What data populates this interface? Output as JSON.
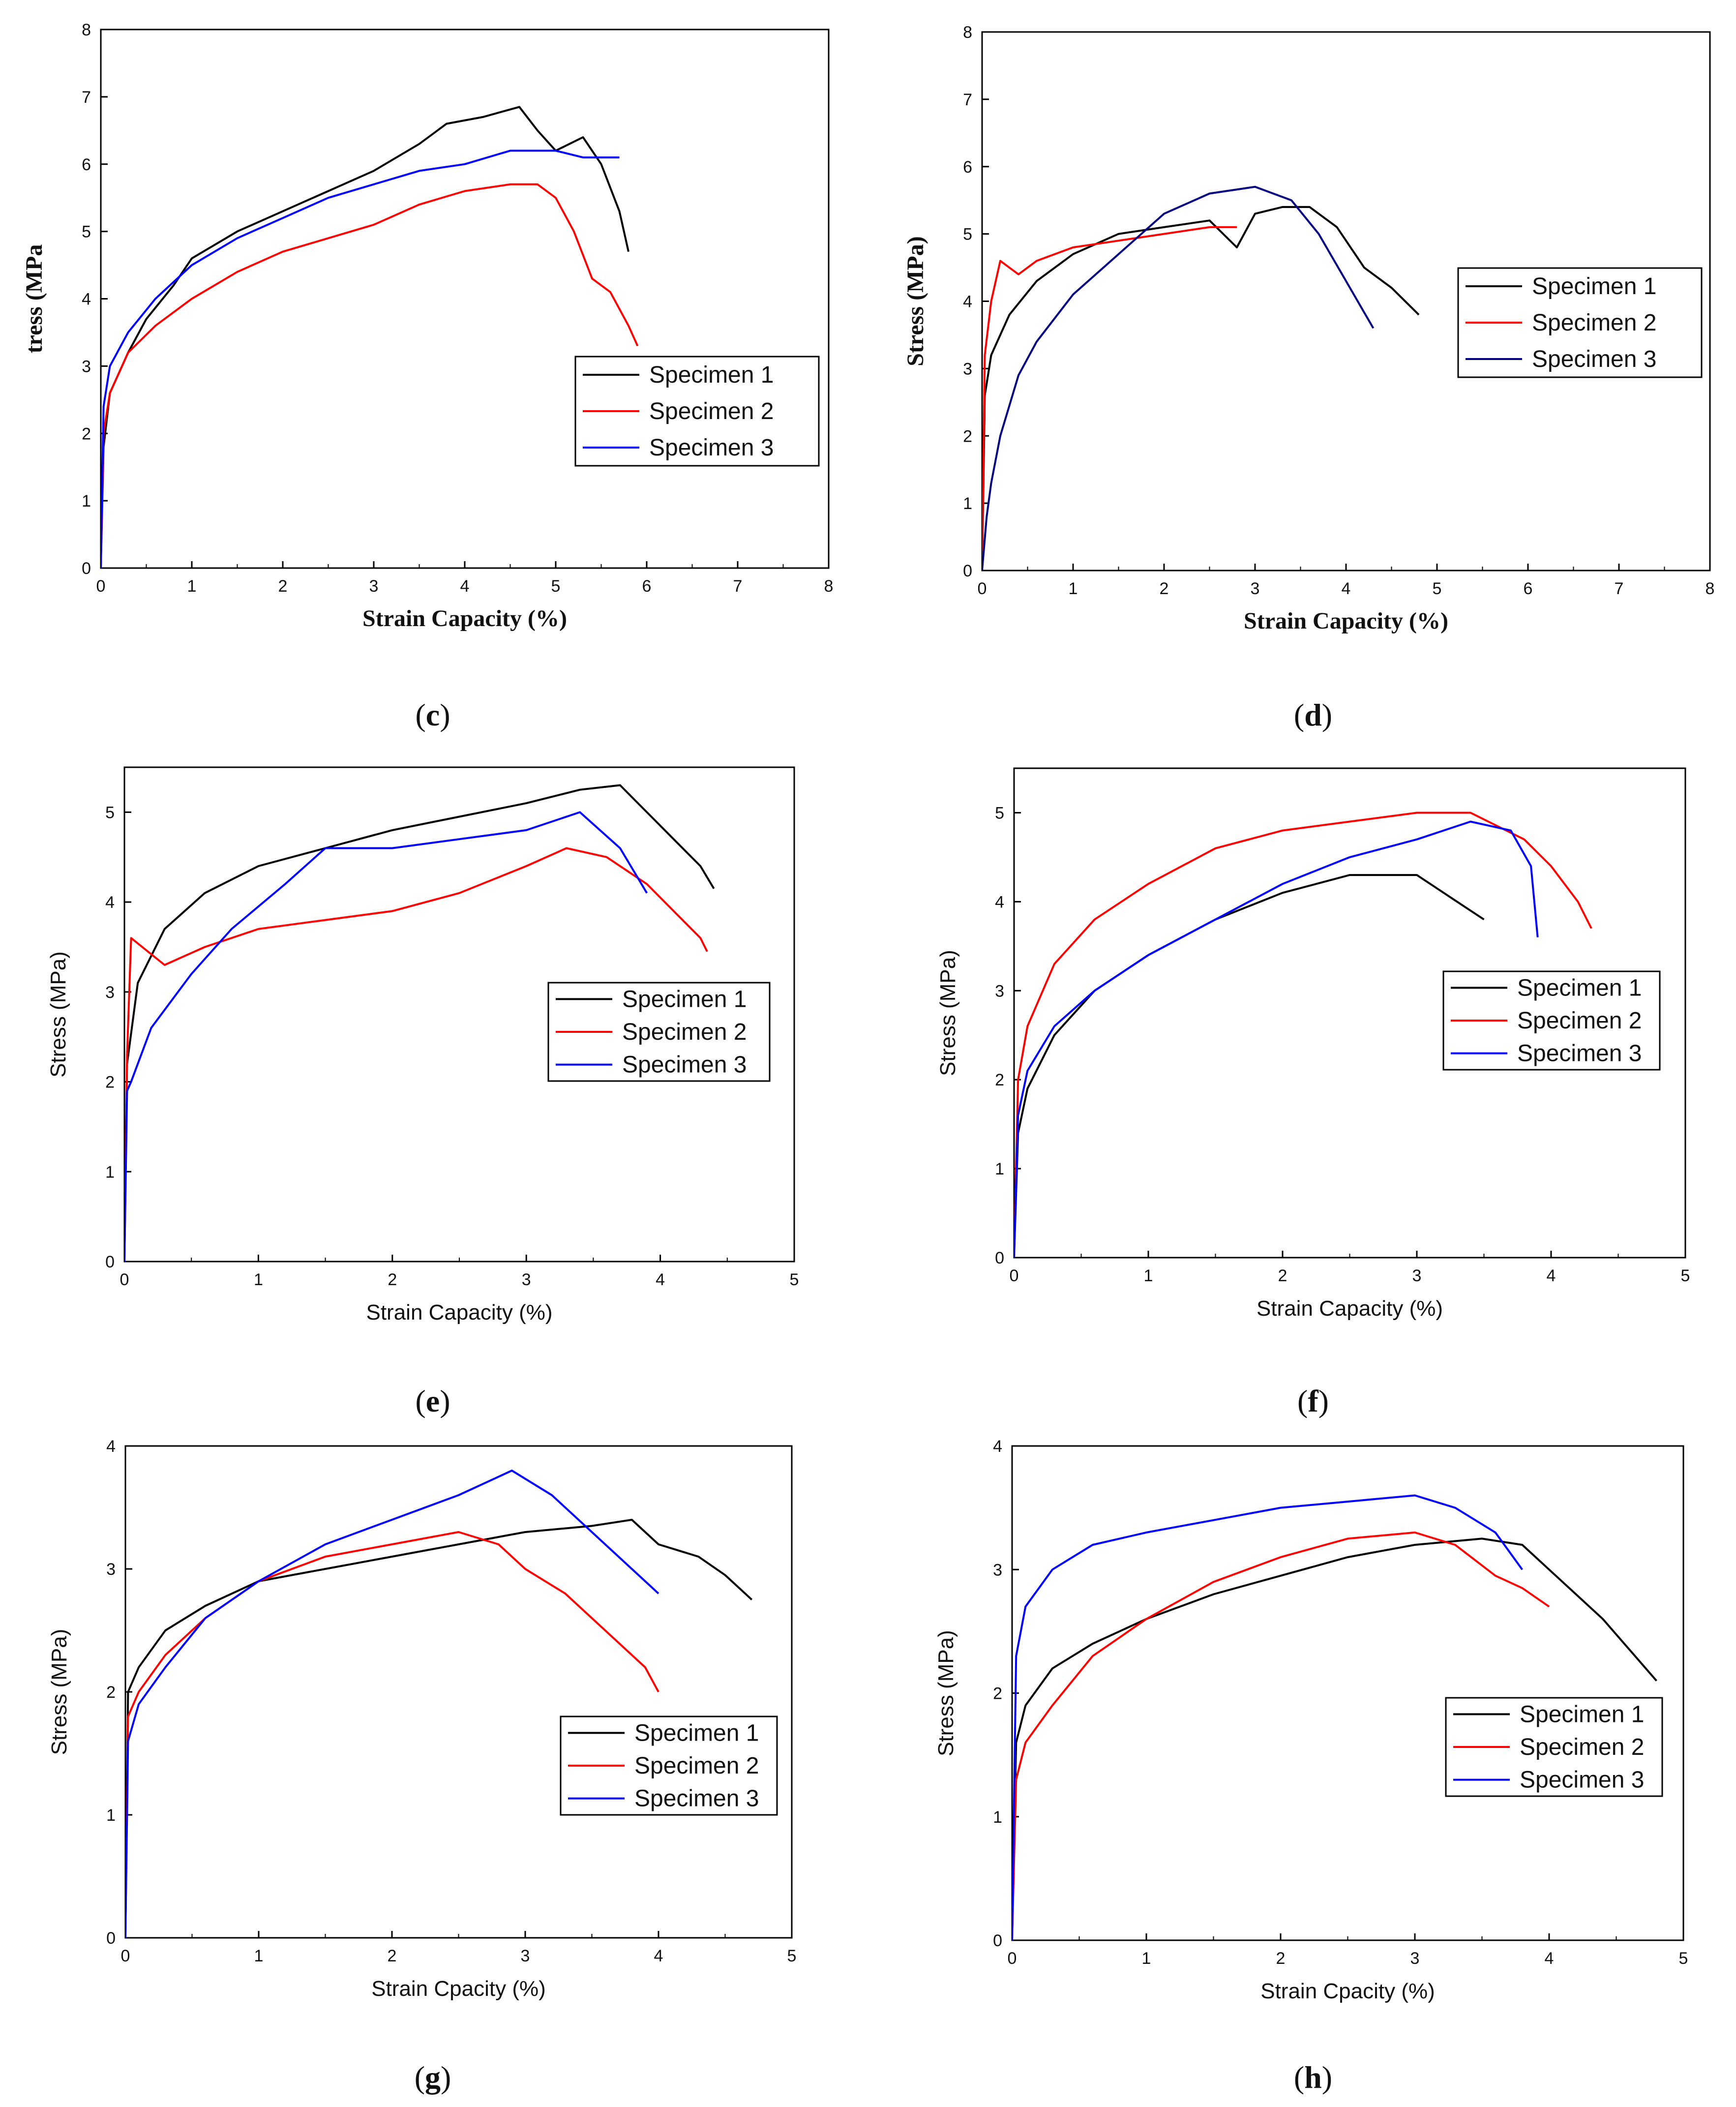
{
  "chart_data": [
    {
      "id": "c",
      "type": "line",
      "caption": "c",
      "xlabel": "Strain Capacity (%)",
      "ylabel": "tress (MPa",
      "xlim": [
        0,
        8
      ],
      "ylim": [
        0,
        8
      ],
      "xticks": [
        "0",
        "1",
        "2",
        "3",
        "4",
        "5",
        "6",
        "7",
        "8"
      ],
      "yticks": [
        "0",
        "1",
        "2",
        "3",
        "4",
        "5",
        "6",
        "7",
        "8"
      ],
      "font": "serif",
      "legend_position": "lower-right",
      "series": [
        {
          "name": "Specimen 1",
          "color": "#000000",
          "x": [
            0,
            0.03,
            0.1,
            0.3,
            0.5,
            0.8,
            1.0,
            1.5,
            2.0,
            2.5,
            3.0,
            3.5,
            3.8,
            4.2,
            4.6,
            4.8,
            5.0,
            5.3,
            5.5,
            5.7,
            5.8
          ],
          "y": [
            0,
            1.8,
            2.6,
            3.2,
            3.7,
            4.2,
            4.6,
            5.0,
            5.3,
            5.6,
            5.9,
            6.3,
            6.6,
            6.7,
            6.85,
            6.5,
            6.2,
            6.4,
            6.0,
            5.3,
            4.7
          ]
        },
        {
          "name": "Specimen 2",
          "color": "#ff0000",
          "x": [
            0,
            0.03,
            0.1,
            0.3,
            0.6,
            1.0,
            1.5,
            2.0,
            2.5,
            3.0,
            3.5,
            4.0,
            4.5,
            4.8,
            5.0,
            5.2,
            5.4,
            5.6,
            5.8,
            5.9
          ],
          "y": [
            0,
            2.0,
            2.6,
            3.2,
            3.6,
            4.0,
            4.4,
            4.7,
            4.9,
            5.1,
            5.4,
            5.6,
            5.7,
            5.7,
            5.5,
            5.0,
            4.3,
            4.1,
            3.6,
            3.3
          ]
        },
        {
          "name": "Specimen 3",
          "color": "#0000ff",
          "x": [
            0,
            0.03,
            0.1,
            0.3,
            0.6,
            1.0,
            1.5,
            2.0,
            2.5,
            3.0,
            3.5,
            4.0,
            4.5,
            5.0,
            5.3,
            5.5,
            5.7
          ],
          "y": [
            0,
            2.4,
            3.0,
            3.5,
            4.0,
            4.5,
            4.9,
            5.2,
            5.5,
            5.7,
            5.9,
            6.0,
            6.2,
            6.2,
            6.1,
            6.1,
            6.1
          ]
        }
      ]
    },
    {
      "id": "d",
      "type": "line",
      "caption": "d",
      "xlabel": "Strain Capacity (%)",
      "ylabel": "Stress (MPa)",
      "xlim": [
        0,
        8
      ],
      "ylim": [
        0,
        8
      ],
      "xticks": [
        "0",
        "1",
        "2",
        "3",
        "4",
        "5",
        "6",
        "7",
        "8"
      ],
      "yticks": [
        "0",
        "1",
        "2",
        "3",
        "4",
        "5",
        "6",
        "7",
        "8"
      ],
      "font": "serif",
      "legend_position": "right",
      "series": [
        {
          "name": "Specimen 1",
          "color": "#000000",
          "x": [
            0,
            0.03,
            0.1,
            0.3,
            0.6,
            1.0,
            1.5,
            2.0,
            2.5,
            2.8,
            3.0,
            3.3,
            3.6,
            3.9,
            4.2,
            4.5,
            4.8
          ],
          "y": [
            0,
            2.6,
            3.2,
            3.8,
            4.3,
            4.7,
            5.0,
            5.1,
            5.2,
            4.8,
            5.3,
            5.4,
            5.4,
            5.1,
            4.5,
            4.2,
            3.8
          ]
        },
        {
          "name": "Specimen 2",
          "color": "#ff0000",
          "x": [
            0,
            0.03,
            0.1,
            0.2,
            0.4,
            0.6,
            1.0,
            1.5,
            2.0,
            2.5,
            2.8
          ],
          "y": [
            0,
            3.2,
            4.0,
            4.6,
            4.4,
            4.6,
            4.8,
            4.9,
            5.0,
            5.1,
            5.1
          ]
        },
        {
          "name": "Specimen 3",
          "color": "#000080",
          "x": [
            0,
            0.05,
            0.1,
            0.2,
            0.4,
            0.6,
            1.0,
            1.5,
            2.0,
            2.5,
            3.0,
            3.4,
            3.7,
            4.0,
            4.3
          ],
          "y": [
            0,
            0.8,
            1.3,
            2.0,
            2.9,
            3.4,
            4.1,
            4.7,
            5.3,
            5.6,
            5.7,
            5.5,
            5.0,
            4.3,
            3.6
          ]
        }
      ]
    },
    {
      "id": "e",
      "type": "line",
      "caption": "e",
      "xlabel": "Strain Capacity (%)",
      "ylabel": "Stress (MPa)",
      "xlim": [
        0,
        5
      ],
      "ylim": [
        0,
        5.5
      ],
      "xticks": [
        "0",
        "1",
        "2",
        "3",
        "4",
        "5"
      ],
      "yticks": [
        "0",
        "1",
        "2",
        "3",
        "4",
        "5"
      ],
      "font": "sans",
      "legend_position": "center-right",
      "series": [
        {
          "name": "Specimen 1",
          "color": "#000000",
          "x": [
            0,
            0.02,
            0.1,
            0.3,
            0.6,
            1.0,
            1.5,
            2.0,
            2.5,
            3.0,
            3.4,
            3.7,
            3.9,
            4.1,
            4.3,
            4.4
          ],
          "y": [
            0,
            2.2,
            3.1,
            3.7,
            4.1,
            4.4,
            4.6,
            4.8,
            4.95,
            5.1,
            5.25,
            5.3,
            5.0,
            4.7,
            4.4,
            4.15
          ]
        },
        {
          "name": "Specimen 2",
          "color": "#ff0000",
          "x": [
            0,
            0.02,
            0.05,
            0.3,
            0.6,
            1.0,
            1.5,
            2.0,
            2.5,
            3.0,
            3.3,
            3.6,
            3.9,
            4.1,
            4.3,
            4.35
          ],
          "y": [
            0,
            2.3,
            3.6,
            3.3,
            3.5,
            3.7,
            3.8,
            3.9,
            4.1,
            4.4,
            4.6,
            4.5,
            4.2,
            3.9,
            3.6,
            3.45
          ]
        },
        {
          "name": "Specimen 3",
          "color": "#0000ff",
          "x": [
            0,
            0.02,
            0.05,
            0.2,
            0.5,
            0.8,
            1.2,
            1.5,
            2.0,
            2.5,
            3.0,
            3.4,
            3.7,
            3.9
          ],
          "y": [
            0,
            1.9,
            2.0,
            2.6,
            3.2,
            3.7,
            4.2,
            4.6,
            4.6,
            4.7,
            4.8,
            5.0,
            4.6,
            4.1
          ]
        }
      ]
    },
    {
      "id": "f",
      "type": "line",
      "caption": "f",
      "xlabel": "Strain Capacity (%)",
      "ylabel": "Stress (MPa)",
      "xlim": [
        0,
        5
      ],
      "ylim": [
        0,
        5.5
      ],
      "xticks": [
        "0",
        "1",
        "2",
        "3",
        "4",
        "5"
      ],
      "yticks": [
        "0",
        "1",
        "2",
        "3",
        "4",
        "5"
      ],
      "font": "sans",
      "legend_position": "center-right",
      "series": [
        {
          "name": "Specimen 1",
          "color": "#000000",
          "x": [
            0,
            0.03,
            0.1,
            0.3,
            0.6,
            1.0,
            1.5,
            2.0,
            2.5,
            3.0,
            3.3,
            3.5
          ],
          "y": [
            0,
            1.4,
            1.9,
            2.5,
            3.0,
            3.4,
            3.8,
            4.1,
            4.3,
            4.3,
            4.0,
            3.8
          ]
        },
        {
          "name": "Specimen 2",
          "color": "#ff0000",
          "x": [
            0,
            0.03,
            0.1,
            0.3,
            0.6,
            1.0,
            1.5,
            2.0,
            2.5,
            3.0,
            3.4,
            3.8,
            4.0,
            4.2,
            4.3
          ],
          "y": [
            0,
            2.0,
            2.6,
            3.3,
            3.8,
            4.2,
            4.6,
            4.8,
            4.9,
            5.0,
            5.0,
            4.7,
            4.4,
            4.0,
            3.7
          ]
        },
        {
          "name": "Specimen 3",
          "color": "#0000ff",
          "x": [
            0,
            0.03,
            0.1,
            0.3,
            0.6,
            1.0,
            1.5,
            2.0,
            2.5,
            3.0,
            3.4,
            3.7,
            3.85,
            3.9
          ],
          "y": [
            0,
            1.6,
            2.1,
            2.6,
            3.0,
            3.4,
            3.8,
            4.2,
            4.5,
            4.7,
            4.9,
            4.8,
            4.4,
            3.6
          ]
        }
      ]
    },
    {
      "id": "g",
      "type": "line",
      "caption": "g",
      "xlabel": "Strain Cpacity (%)",
      "ylabel": "Stress (MPa)",
      "xlim": [
        0,
        5
      ],
      "ylim": [
        0,
        4
      ],
      "xticks": [
        "0",
        "1",
        "2",
        "3",
        "4",
        "5"
      ],
      "yticks": [
        "0",
        "1",
        "2",
        "3",
        "4"
      ],
      "font": "sans",
      "legend_position": "center-right",
      "series": [
        {
          "name": "Specimen 1",
          "color": "#000000",
          "x": [
            0,
            0.02,
            0.1,
            0.3,
            0.6,
            1.0,
            1.5,
            2.0,
            2.5,
            3.0,
            3.5,
            3.8,
            4.0,
            4.3,
            4.5,
            4.7
          ],
          "y": [
            0,
            2.0,
            2.2,
            2.5,
            2.7,
            2.9,
            3.0,
            3.1,
            3.2,
            3.3,
            3.35,
            3.4,
            3.2,
            3.1,
            2.95,
            2.75
          ]
        },
        {
          "name": "Specimen 2",
          "color": "#ff0000",
          "x": [
            0,
            0.02,
            0.1,
            0.3,
            0.6,
            1.0,
            1.5,
            2.0,
            2.5,
            2.8,
            3.0,
            3.3,
            3.5,
            3.7,
            3.9,
            4.0
          ],
          "y": [
            0,
            1.8,
            2.0,
            2.3,
            2.6,
            2.9,
            3.1,
            3.2,
            3.3,
            3.2,
            3.0,
            2.8,
            2.6,
            2.4,
            2.2,
            2.0
          ]
        },
        {
          "name": "Specimen 3",
          "color": "#0000ff",
          "x": [
            0,
            0.02,
            0.1,
            0.3,
            0.6,
            1.0,
            1.5,
            2.0,
            2.5,
            2.9,
            3.2,
            3.5,
            3.8,
            4.0
          ],
          "y": [
            0,
            1.6,
            1.9,
            2.2,
            2.6,
            2.9,
            3.2,
            3.4,
            3.6,
            3.8,
            3.6,
            3.3,
            3.0,
            2.8
          ]
        }
      ]
    },
    {
      "id": "h",
      "type": "line",
      "caption": "h",
      "xlabel": "Strain Cpacity (%)",
      "ylabel": "Stress (MPa)",
      "xlim": [
        0,
        5
      ],
      "ylim": [
        0,
        4
      ],
      "xticks": [
        "0",
        "1",
        "2",
        "3",
        "4",
        "5"
      ],
      "yticks": [
        "0",
        "1",
        "2",
        "3",
        "4"
      ],
      "font": "sans",
      "legend_position": "center-right",
      "series": [
        {
          "name": "Specimen 1",
          "color": "#000000",
          "x": [
            0,
            0.03,
            0.1,
            0.3,
            0.6,
            1.0,
            1.5,
            2.0,
            2.5,
            3.0,
            3.5,
            3.8,
            4.0,
            4.2,
            4.4,
            4.6,
            4.8
          ],
          "y": [
            0,
            1.6,
            1.9,
            2.2,
            2.4,
            2.6,
            2.8,
            2.95,
            3.1,
            3.2,
            3.25,
            3.2,
            3.0,
            2.8,
            2.6,
            2.35,
            2.1
          ]
        },
        {
          "name": "Specimen 2",
          "color": "#ff0000",
          "x": [
            0,
            0.03,
            0.1,
            0.3,
            0.6,
            1.0,
            1.5,
            2.0,
            2.5,
            3.0,
            3.3,
            3.6,
            3.8,
            4.0
          ],
          "y": [
            0,
            1.3,
            1.6,
            1.9,
            2.3,
            2.6,
            2.9,
            3.1,
            3.25,
            3.3,
            3.2,
            2.95,
            2.85,
            2.7
          ]
        },
        {
          "name": "Specimen 3",
          "color": "#0000ff",
          "x": [
            0,
            0.03,
            0.1,
            0.3,
            0.6,
            1.0,
            1.5,
            2.0,
            2.5,
            3.0,
            3.3,
            3.6,
            3.8
          ],
          "y": [
            0,
            2.3,
            2.7,
            3.0,
            3.2,
            3.3,
            3.4,
            3.5,
            3.55,
            3.6,
            3.5,
            3.3,
            3.0
          ]
        }
      ]
    }
  ]
}
